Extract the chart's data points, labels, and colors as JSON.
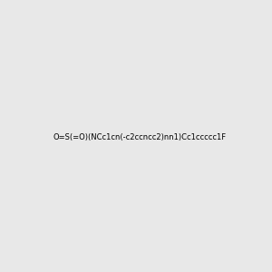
{
  "smiles": "O=S(=O)(NCc1cn(-c2ccncc2)nn1)Cc1ccccc1F",
  "image_size": 300,
  "background_color": "#e8e8e8"
}
